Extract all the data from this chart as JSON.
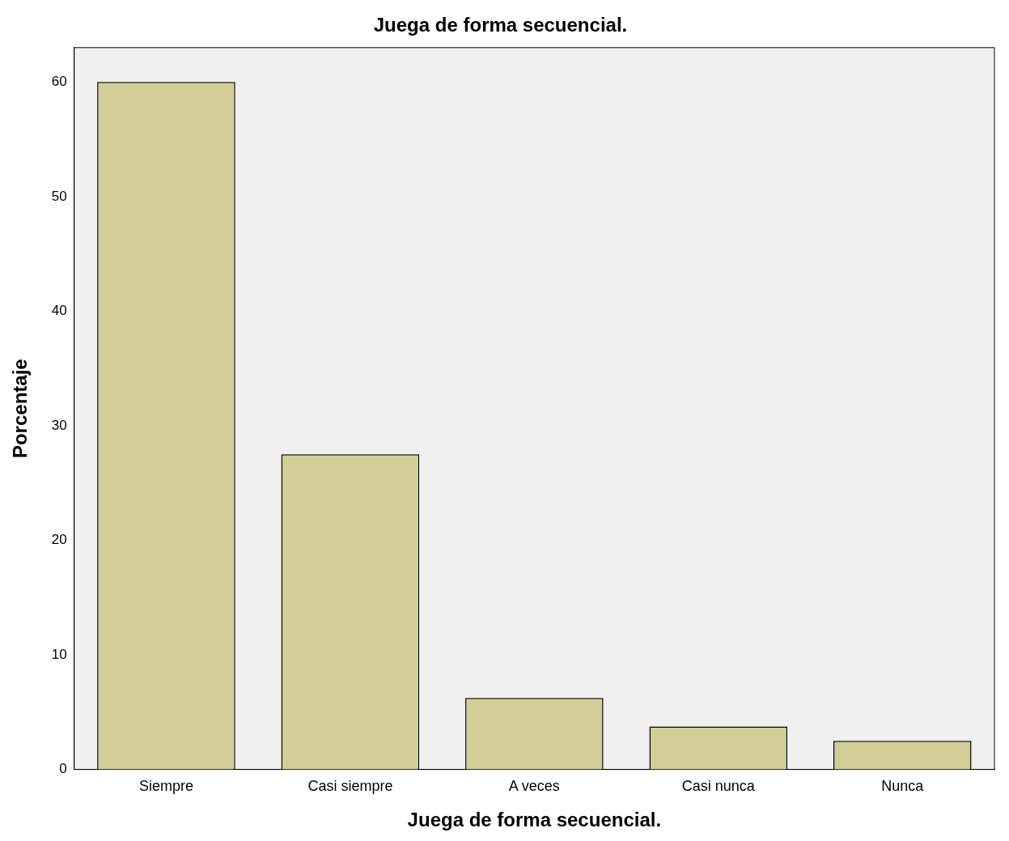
{
  "chart_data": {
    "type": "bar",
    "title": "Juega de forma secuencial.",
    "xlabel": "Juega de forma secuencial.",
    "ylabel": "Porcentaje",
    "categories": [
      "Siempre",
      "Casi siempre",
      "A veces",
      "Casi nunca",
      "Nunca"
    ],
    "values": [
      60,
      27.5,
      6.25,
      3.75,
      2.5
    ],
    "color": "#d3ce97",
    "ylim": [
      0,
      63
    ],
    "yticks": [
      0,
      10,
      20,
      30,
      40,
      50,
      60
    ],
    "grid": false,
    "legend": false
  }
}
